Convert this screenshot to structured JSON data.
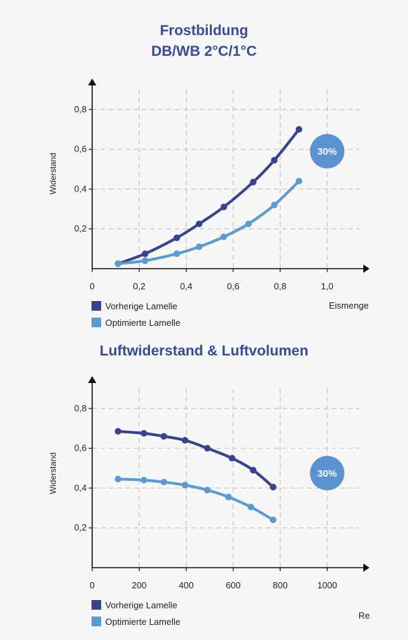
{
  "colors": {
    "prev": "#36438f",
    "opt": "#5b9bd5",
    "badge": "#5b93d0",
    "title": "#3a4a9a"
  },
  "chart_data": [
    {
      "type": "line",
      "title_line1": "Frostbildung",
      "title_line2": "DB/WB 2°C/1°C",
      "xlabel": "Eismenge",
      "ylabel": "Widerstand",
      "xlim": [
        0,
        1.18
      ],
      "ylim": [
        0,
        0.9
      ],
      "x_ticks": [
        0,
        0.2,
        0.4,
        0.6,
        0.8,
        1.0
      ],
      "x_tick_labels": [
        "0",
        "0,2",
        "0,4",
        "0,6",
        "0,8",
        "1,0"
      ],
      "y_ticks": [
        0.2,
        0.4,
        0.6,
        0.8
      ],
      "y_tick_labels": [
        "0,2",
        "0,4",
        "0,6",
        "0,8"
      ],
      "grid": true,
      "badge": {
        "text": "30%",
        "x": 1.0,
        "y": 0.59
      },
      "series": [
        {
          "name": "Vorherige Lamelle",
          "color": "#36438f",
          "x": [
            0.11,
            0.225,
            0.36,
            0.455,
            0.56,
            0.685,
            0.775,
            0.88
          ],
          "y": [
            0.025,
            0.075,
            0.155,
            0.225,
            0.31,
            0.435,
            0.545,
            0.7
          ]
        },
        {
          "name": "Optimierte Lamelle",
          "color": "#5b9bd5",
          "x": [
            0.11,
            0.225,
            0.36,
            0.455,
            0.56,
            0.665,
            0.775,
            0.88
          ],
          "y": [
            0.025,
            0.04,
            0.075,
            0.11,
            0.16,
            0.225,
            0.32,
            0.44
          ]
        }
      ]
    },
    {
      "type": "line",
      "title": "Luftwiderstand & Luftvolumen",
      "xlabel": "Re",
      "ylabel": "Widerstand",
      "xlim": [
        0,
        1180
      ],
      "ylim": [
        0,
        0.9
      ],
      "x_ticks": [
        0,
        200,
        400,
        600,
        800,
        1000
      ],
      "x_tick_labels": [
        "0",
        "200",
        "400",
        "600",
        "800",
        "1000"
      ],
      "y_ticks": [
        0.2,
        0.4,
        0.6,
        0.8
      ],
      "y_tick_labels": [
        "0,2",
        "0,4",
        "0,6",
        "0,8"
      ],
      "grid": true,
      "badge": {
        "text": "30%",
        "x": 1000,
        "y": 0.475
      },
      "series": [
        {
          "name": "Vorherige Lamelle",
          "color": "#36438f",
          "x": [
            110,
            220,
            305,
            395,
            490,
            595,
            685,
            770
          ],
          "y": [
            0.685,
            0.675,
            0.66,
            0.64,
            0.6,
            0.55,
            0.49,
            0.405
          ]
        },
        {
          "name": "Optimierte Lamelle",
          "color": "#5b9bd5",
          "x": [
            110,
            220,
            305,
            395,
            490,
            580,
            675,
            770
          ],
          "y": [
            0.445,
            0.44,
            0.43,
            0.415,
            0.39,
            0.355,
            0.305,
            0.24
          ]
        }
      ]
    }
  ]
}
